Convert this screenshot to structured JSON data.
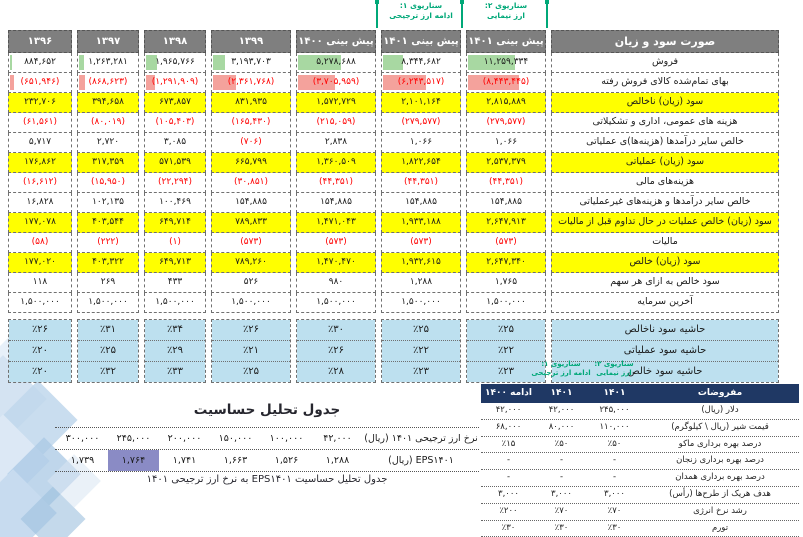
{
  "colors": {
    "header_gray": "#7F7F7F",
    "yellow_highlight": "#FFFF00",
    "margin_blue": "#BDE0EF",
    "navy_header": "#1F3864",
    "teal_scenario": "#00A878",
    "negative_red": "#FF0000",
    "purple_highlight": "#8A8BC5",
    "green_databar": "#A8D8A2",
    "red_databar": "#F4A29C"
  },
  "pnl": {
    "title": "صورت سود و زیان",
    "scenario2": {
      "line1": "سناریوی ۲:",
      "line2": "ارز نیمایی"
    },
    "scenario1": {
      "line1": "سناریوی ۱:",
      "line2": "ادامه ارز ترجیحی"
    },
    "row_labels": [
      "فروش",
      "بهای تمام‌شده کالای فروش رفته",
      "سود (زیان) ناخالص",
      "هزینه های عمومی، اداری و تشکیلاتی",
      "خالص سایر درآمدها (هزینه‌ها)ی عملیاتی",
      "سود (زیان) عملیاتی",
      "هزینه‌های مالی",
      "خالص سایر درآمدها و هزینه‌های غیرعملیاتی",
      "سود (زیان) خالص عملیات در حال تداوم قبل از مالیات",
      "مالیات",
      "سود (زیان) خالص",
      "سود خالص به ازای هر سهم",
      "آخرین سرمایه"
    ],
    "yellow_rows": [
      2,
      5,
      8,
      10
    ],
    "margin_labels": [
      "حاشیه سود ناخالص",
      "حاشیه سود عملیاتی",
      "حاشیه سود خالص"
    ],
    "columns": [
      {
        "header": "پیش بینی ۱۴۰۱",
        "values": [
          "۱۱,۲۵۹,۳۳۴",
          "(۸,۴۴۳,۴۴۵)",
          "۲,۸۱۵,۸۸۹",
          "(۲۷۹,۵۷۷)",
          "۱,۰۶۶",
          "۲,۵۳۷,۳۷۹",
          "(۴۴,۳۵۱)",
          "۱۵۴,۸۸۵",
          "۲,۶۴۷,۹۱۳",
          "(۵۷۳)",
          "۲,۶۴۷,۳۴۰",
          "۱,۷۶۵",
          "۱,۵۰۰,۰۰۰"
        ],
        "margins": [
          "٪۲۵",
          "٪۲۲",
          "٪۲۳"
        ],
        "bars": {
          "sales": 60,
          "cogs": 65
        }
      },
      {
        "header": "پیش بینی ۱۴۰۱",
        "values": [
          "۸,۳۴۴,۶۸۲",
          "(۶,۲۴۳,۵۱۷)",
          "۲,۱۰۱,۱۶۴",
          "(۲۷۹,۵۷۷)",
          "۱,۰۶۶",
          "۱,۸۲۲,۶۵۴",
          "(۴۴,۳۵۱)",
          "۱۵۴,۸۸۵",
          "۱,۹۳۳,۱۸۸",
          "(۵۷۳)",
          "۱,۹۳۲,۶۱۵",
          "۱,۲۸۸",
          "۱,۵۰۰,۰۰۰"
        ],
        "margins": [
          "٪۲۵",
          "٪۲۲",
          "٪۲۳"
        ],
        "bars": {
          "sales": 26,
          "cogs": 55
        }
      },
      {
        "header": "پیش بینی ۱۴۰۰",
        "values": [
          "۵,۲۷۸,۶۸۸",
          "(۳,۷۰۵,۹۵۹)",
          "۱,۵۷۲,۷۲۹",
          "(۲۱۵,۰۵۹)",
          "۲,۸۳۸",
          "۱,۳۶۰,۵۰۹",
          "(۴۴,۳۵۱)",
          "۱۵۴,۸۸۵",
          "۱,۴۷۱,۰۴۳",
          "(۵۷۳)",
          "۱,۴۷۰,۴۷۰",
          "۹۸۰",
          "۱,۵۰۰,۰۰۰"
        ],
        "margins": [
          "٪۳۰",
          "٪۲۶",
          "٪۲۸"
        ],
        "bars": {
          "sales": 55,
          "cogs": 48
        }
      },
      {
        "header": "۱۳۹۹",
        "values": [
          "۳,۱۹۳,۷۰۳",
          "(۲,۳۶۱,۷۶۸)",
          "۸۳۱,۹۳۵",
          "(۱۶۵,۴۳۰)",
          "(۷۰۶)",
          "۶۶۵,۷۹۹",
          "(۳۰,۸۵۱)",
          "۱۵۴,۸۸۵",
          "۷۸۹,۸۳۳",
          "(۵۷۳)",
          "۷۸۹,۲۶۰",
          "۵۲۶",
          "۱,۵۰۰,۰۰۰"
        ],
        "margins": [
          "٪۲۶",
          "٪۲۱",
          "٪۲۵"
        ],
        "bars": {
          "sales": 16,
          "cogs": 30
        }
      },
      {
        "header": "۱۳۹۸",
        "values": [
          "۱,۹۶۵,۷۶۶",
          "(۱,۲۹۱,۹۰۹)",
          "۶۷۳,۸۵۷",
          "(۱۰۵,۴۰۳)",
          "۳,۰۸۵",
          "۵۷۱,۵۳۹",
          "(۲۲,۲۹۴)",
          "۱۰۰,۴۶۹",
          "۶۴۹,۷۱۴",
          "(۱)",
          "۶۴۹,۷۱۳",
          "۴۳۳",
          "۱,۵۰۰,۰۰۰"
        ],
        "margins": [
          "٪۳۴",
          "٪۲۹",
          "٪۳۳"
        ],
        "bars": {
          "sales": 18,
          "cogs": 15
        }
      },
      {
        "header": "۱۳۹۷",
        "values": [
          "۱,۲۶۳,۲۸۱",
          "(۸۶۸,۶۲۳)",
          "۳۹۴,۶۵۸",
          "(۸۰,۰۱۹)",
          "۲,۷۲۰",
          "۳۱۷,۳۵۹",
          "(۱۵,۹۵۰)",
          "۱۰۲,۱۳۵",
          "۴۰۳,۵۴۴",
          "(۲۲۲)",
          "۴۰۳,۳۲۲",
          "۲۶۹",
          "۱,۵۰۰,۰۰۰"
        ],
        "margins": [
          "٪۳۱",
          "٪۲۵",
          "٪۳۲"
        ],
        "bars": {
          "sales": 8,
          "cogs": 10
        }
      },
      {
        "header": "۱۳۹۶",
        "values": [
          "۸۸۴,۶۵۲",
          "(۶۵۱,۹۴۶)",
          "۲۳۲,۷۰۶",
          "(۶۱,۵۶۱)",
          "۵,۷۱۷",
          "۱۷۶,۸۶۲",
          "(۱۶,۶۱۲)",
          "۱۶,۸۲۸",
          "۱۷۷,۰۷۸",
          "(۵۸)",
          "۱۷۷,۰۲۰",
          "۱۱۸",
          "۱,۵۰۰,۰۰۰"
        ],
        "margins": [
          "٪۲۶",
          "٪۲۰",
          "٪۲۰"
        ],
        "bars": {
          "sales": 4,
          "cogs": 7
        }
      }
    ]
  },
  "sensitivity": {
    "title": "جدول تحلیل حساسیت",
    "caption": "جدول تحلیل حساسیت EPS۱۴۰۱ به نرخ ارز ترجیحی ۱۴۰۱",
    "rows": [
      {
        "label": "نرخ ارز ترجیحی ۱۴۰۱ (ریال)",
        "cells": [
          "۴۲,۰۰۰",
          "۱۰۰,۰۰۰",
          "۱۵۰,۰۰۰",
          "۲۰۰,۰۰۰",
          "۲۴۵,۰۰۰",
          "۳۰۰,۰۰۰"
        ],
        "highlight_index": -1
      },
      {
        "label": "EPS۱۴۰۱ (ریال)",
        "cells": [
          "۱,۲۸۸",
          "۱,۵۲۶",
          "۱,۶۶۳",
          "۱,۷۴۱",
          "۱,۷۶۴",
          "۱,۷۳۹"
        ],
        "highlight_index": 4
      }
    ]
  },
  "assumptions": {
    "scenario2": {
      "line1": "سناریوی ۲:",
      "line2": "ارز نیمایی"
    },
    "scenario1": {
      "line1": "سناریوی ۱:",
      "line2": "ادامه ارز ترجیحی"
    },
    "headers": [
      "مفروضات",
      "۱۴۰۱",
      "۱۴۰۱",
      "ادامه ۱۴۰۰"
    ],
    "rows": [
      {
        "label": "دلار (ریال)",
        "values": [
          "۲۴۵,۰۰۰",
          "۴۲,۰۰۰",
          "۴۲,۰۰۰"
        ]
      },
      {
        "label": "قیمت شیر (ریال \\ کیلوگرم)",
        "values": [
          "۱۱۰,۰۰۰",
          "۸۰,۰۰۰",
          "۶۸,۰۰۰"
        ]
      },
      {
        "label": "درصد بهره برداری ماکو",
        "values": [
          "٪۵۰",
          "٪۵۰",
          "٪۱۵"
        ]
      },
      {
        "label": "درصد بهره برداری زنجان",
        "values": [
          "-",
          "-",
          "-"
        ]
      },
      {
        "label": "درصد بهره برداری همدان",
        "values": [
          "-",
          "-",
          "-"
        ]
      },
      {
        "label": "هدف هریک از طرح‌ها (رأس)",
        "values": [
          "۳,۰۰۰",
          "۳,۰۰۰",
          "۳,۰۰۰"
        ]
      },
      {
        "label": "رشد نرخ انرژی",
        "values": [
          "٪۷۰",
          "٪۷۰",
          "٪۲۰۰"
        ]
      },
      {
        "label": "تورم",
        "values": [
          "٪۳۰",
          "٪۳۰",
          "٪۳۰"
        ]
      }
    ]
  }
}
